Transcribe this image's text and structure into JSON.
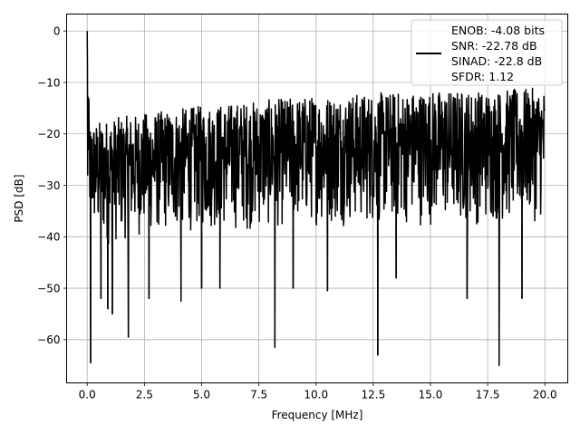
{
  "chart_data": {
    "type": "line",
    "xlabel": "Frequency [MHz]",
    "ylabel": "PSD [dB]",
    "xlim": [
      -0.9,
      21.0
    ],
    "ylim": [
      -68.4,
      3.3
    ],
    "grid": true,
    "legend_position": "top-right",
    "x_ticks": [
      0.0,
      2.5,
      5.0,
      7.5,
      10.0,
      12.5,
      15.0,
      17.5,
      20.0
    ],
    "x_tick_labels": [
      "0.0",
      "2.5",
      "5.0",
      "7.5",
      "10.0",
      "12.5",
      "15.0",
      "17.5",
      "20.0"
    ],
    "y_ticks": [
      0,
      -10,
      -20,
      -30,
      -40,
      -50,
      -60
    ],
    "y_tick_labels": [
      "0",
      "−10",
      "−20",
      "−30",
      "−40",
      "−50",
      "−60"
    ],
    "legend": {
      "lines": [
        "ENOB: -4.08 bits",
        "SNR: -22.78 dB",
        "SINAD: -22.8 dB",
        "SFDR: 1.12"
      ],
      "color": "#000000"
    },
    "series": [
      {
        "color": "#000000",
        "envelope_x": [
          0.0,
          0.1,
          0.5,
          1.0,
          2.5,
          5.0,
          7.5,
          10.0,
          12.5,
          15.0,
          17.5,
          20.0
        ],
        "envelope_upper": [
          0.0,
          -18,
          -17.5,
          -17,
          -16,
          -14.5,
          -13.5,
          -12.5,
          -12,
          -11.5,
          -11.5,
          -11
        ],
        "envelope_lower": [
          -32,
          -38,
          -42,
          -42,
          -40,
          -39,
          -39,
          -38,
          -38,
          -38,
          -38,
          -37
        ],
        "dips": [
          {
            "x": 0.15,
            "y": -64.5
          },
          {
            "x": 0.6,
            "y": -52
          },
          {
            "x": 0.9,
            "y": -54
          },
          {
            "x": 1.1,
            "y": -55
          },
          {
            "x": 1.8,
            "y": -59.5
          },
          {
            "x": 2.7,
            "y": -52
          },
          {
            "x": 4.1,
            "y": -52.5
          },
          {
            "x": 5.0,
            "y": -50
          },
          {
            "x": 5.8,
            "y": -50
          },
          {
            "x": 8.2,
            "y": -61.5
          },
          {
            "x": 9.0,
            "y": -50
          },
          {
            "x": 10.5,
            "y": -50.5
          },
          {
            "x": 12.7,
            "y": -63
          },
          {
            "x": 13.5,
            "y": -48
          },
          {
            "x": 16.6,
            "y": -52
          },
          {
            "x": 18.0,
            "y": -65
          },
          {
            "x": 19.0,
            "y": -52
          }
        ]
      }
    ]
  }
}
